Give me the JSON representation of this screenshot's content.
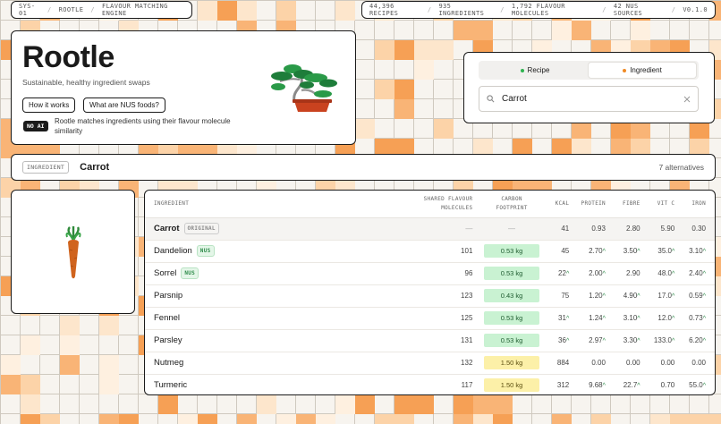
{
  "topbar_left": {
    "code": "SYS-01",
    "name": "ROOTLE",
    "desc": "FLAVOUR MATCHING ENGINE"
  },
  "topbar_right": {
    "recipes": "44,396 RECIPES",
    "ingredients": "935 INGREDIENTS",
    "molecules": "1,792 FLAVOUR MOLECULES",
    "sources": "42 NUS SOURCES",
    "version": "V0.1.0"
  },
  "hero": {
    "title": "Rootle",
    "subtitle": "Sustainable, healthy ingredient swaps",
    "how_it_works": "How it works",
    "nus_foods": "What are NUS foods?",
    "no_ai_badge": "NO AI",
    "no_ai_text": "Rootle matches ingredients using their flavour molecule similarity",
    "illustration_icon": "bonsai-illustration"
  },
  "search": {
    "modes": [
      "Recipe",
      "Ingredient"
    ],
    "active_mode": "Ingredient",
    "recipe_dot_color": "#2fb350",
    "ingredient_dot_color": "#f08a24",
    "query": "Carrot",
    "search_icon": "search-icon",
    "clear_icon": "close-icon"
  },
  "selected": {
    "tag": "INGREDIENT",
    "name": "Carrot",
    "count": "7 alternatives",
    "illustration_icon": "carrot-illustration"
  },
  "table": {
    "headers": {
      "ingredient": "INGREDIENT",
      "shared_1": "SHARED FLAVOUR",
      "shared_2": "MOLECULES",
      "carbon_1": "CARBON",
      "carbon_2": "FOOTPRINT",
      "kcal": "KCAL",
      "protein": "PROTEIN",
      "fibre": "FIBRE",
      "vitc": "VIT C",
      "iron": "IRON"
    },
    "original_chip": "ORIGINAL",
    "nus_chip": "NUS",
    "rows": [
      {
        "name": "Carrot",
        "original": true,
        "shared": "—",
        "carbon": "—",
        "carbon_level": "none",
        "kcal": "41",
        "kcal_up": false,
        "protein": "0.93",
        "protein_up": false,
        "fibre": "2.80",
        "fibre_up": false,
        "vitc": "5.90",
        "vitc_up": false,
        "iron": "0.30",
        "iron_up": false
      },
      {
        "name": "Dandelion",
        "nus": true,
        "shared": "101",
        "carbon": "0.53 kg",
        "carbon_level": "green",
        "kcal": "45",
        "kcal_up": false,
        "protein": "2.70",
        "protein_up": true,
        "fibre": "3.50",
        "fibre_up": true,
        "vitc": "35.0",
        "vitc_up": true,
        "iron": "3.10",
        "iron_up": true
      },
      {
        "name": "Sorrel",
        "nus": true,
        "shared": "96",
        "carbon": "0.53 kg",
        "carbon_level": "green",
        "kcal": "22",
        "kcal_up": true,
        "protein": "2.00",
        "protein_up": true,
        "fibre": "2.90",
        "fibre_up": false,
        "vitc": "48.0",
        "vitc_up": true,
        "iron": "2.40",
        "iron_up": true
      },
      {
        "name": "Parsnip",
        "shared": "123",
        "carbon": "0.43 kg",
        "carbon_level": "green",
        "kcal": "75",
        "kcal_up": false,
        "protein": "1.20",
        "protein_up": true,
        "fibre": "4.90",
        "fibre_up": true,
        "vitc": "17.0",
        "vitc_up": true,
        "iron": "0.59",
        "iron_up": true
      },
      {
        "name": "Fennel",
        "shared": "125",
        "carbon": "0.53 kg",
        "carbon_level": "green",
        "kcal": "31",
        "kcal_up": true,
        "protein": "1.24",
        "protein_up": true,
        "fibre": "3.10",
        "fibre_up": true,
        "vitc": "12.0",
        "vitc_up": true,
        "iron": "0.73",
        "iron_up": true
      },
      {
        "name": "Parsley",
        "shared": "131",
        "carbon": "0.53 kg",
        "carbon_level": "green",
        "kcal": "36",
        "kcal_up": true,
        "protein": "2.97",
        "protein_up": true,
        "fibre": "3.30",
        "fibre_up": true,
        "vitc": "133.0",
        "vitc_up": true,
        "iron": "6.20",
        "iron_up": true
      },
      {
        "name": "Nutmeg",
        "shared": "132",
        "carbon": "1.50 kg",
        "carbon_level": "yellow",
        "kcal": "884",
        "kcal_up": false,
        "protein": "0.00",
        "protein_up": false,
        "fibre": "0.00",
        "fibre_up": false,
        "vitc": "0.00",
        "vitc_up": false,
        "iron": "0.00",
        "iron_up": false
      },
      {
        "name": "Turmeric",
        "shared": "117",
        "carbon": "1.50 kg",
        "carbon_level": "yellow",
        "kcal": "312",
        "kcal_up": false,
        "protein": "9.68",
        "protein_up": true,
        "fibre": "22.7",
        "fibre_up": true,
        "vitc": "0.70",
        "vitc_up": false,
        "iron": "55.0",
        "iron_up": true
      }
    ]
  }
}
